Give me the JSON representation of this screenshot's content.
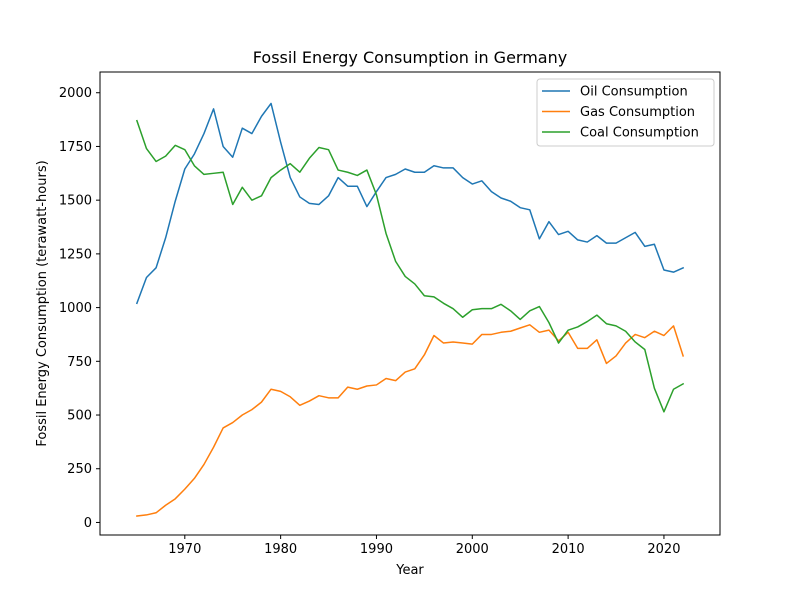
{
  "chart_data": {
    "type": "line",
    "title": "Fossil Energy Consumption in Germany",
    "xlabel": "Year",
    "ylabel": "Fossil Energy Consumption (terawatt-hours)",
    "xlim": [
      1961.15,
      2025.85
    ],
    "ylim": [
      -58.4,
      2096.5
    ],
    "xticks": [
      1970,
      1980,
      1990,
      2000,
      2010,
      2020
    ],
    "yticks": [
      0,
      250,
      500,
      750,
      1000,
      1250,
      1500,
      1750,
      2000
    ],
    "ytick_labels": [
      "0",
      "250",
      "500",
      "750",
      "1000",
      "1250",
      "1500",
      "1750",
      "2000"
    ],
    "grid": false,
    "legend_position": "top-right",
    "x": [
      1965,
      1966,
      1967,
      1968,
      1969,
      1970,
      1971,
      1972,
      1973,
      1974,
      1975,
      1976,
      1977,
      1978,
      1979,
      1980,
      1981,
      1982,
      1983,
      1984,
      1985,
      1986,
      1987,
      1988,
      1989,
      1990,
      1991,
      1992,
      1993,
      1994,
      1995,
      1996,
      1997,
      1998,
      1999,
      2000,
      2001,
      2002,
      2003,
      2004,
      2005,
      2006,
      2007,
      2008,
      2009,
      2010,
      2011,
      2012,
      2013,
      2014,
      2015,
      2016,
      2017,
      2018,
      2019,
      2020,
      2021,
      2022
    ],
    "series": [
      {
        "name": "Oil Consumption",
        "color": "#1f77b4",
        "values": [
          1020,
          1140,
          1185,
          1325,
          1495,
          1645,
          1715,
          1810,
          1925,
          1750,
          1700,
          1835,
          1810,
          1890,
          1950,
          1770,
          1605,
          1515,
          1485,
          1480,
          1520,
          1605,
          1565,
          1565,
          1470,
          1540,
          1605,
          1620,
          1645,
          1630,
          1630,
          1660,
          1650,
          1650,
          1605,
          1575,
          1590,
          1540,
          1510,
          1495,
          1465,
          1455,
          1320,
          1400,
          1340,
          1355,
          1315,
          1305,
          1335,
          1300,
          1300,
          1325,
          1350,
          1285,
          1295,
          1175,
          1165,
          1185
        ]
      },
      {
        "name": "Gas Consumption",
        "color": "#ff7f0e",
        "values": [
          30,
          35,
          45,
          80,
          110,
          155,
          205,
          270,
          350,
          440,
          465,
          500,
          525,
          560,
          620,
          610,
          585,
          545,
          565,
          590,
          580,
          580,
          630,
          620,
          635,
          640,
          670,
          660,
          700,
          715,
          780,
          870,
          835,
          840,
          835,
          830,
          875,
          875,
          885,
          890,
          905,
          920,
          885,
          895,
          845,
          885,
          810,
          810,
          850,
          740,
          775,
          835,
          875,
          860,
          890,
          870,
          915,
          775
        ]
      },
      {
        "name": "Coal Consumption",
        "color": "#2ca02c",
        "values": [
          1870,
          1740,
          1680,
          1705,
          1755,
          1735,
          1660,
          1620,
          1625,
          1630,
          1480,
          1560,
          1500,
          1520,
          1605,
          1640,
          1670,
          1630,
          1695,
          1745,
          1735,
          1640,
          1630,
          1615,
          1640,
          1525,
          1345,
          1215,
          1145,
          1110,
          1055,
          1050,
          1020,
          995,
          955,
          990,
          995,
          995,
          1015,
          985,
          945,
          985,
          1005,
          930,
          835,
          895,
          910,
          935,
          965,
          925,
          915,
          890,
          840,
          805,
          625,
          515,
          620,
          645
        ]
      }
    ]
  }
}
